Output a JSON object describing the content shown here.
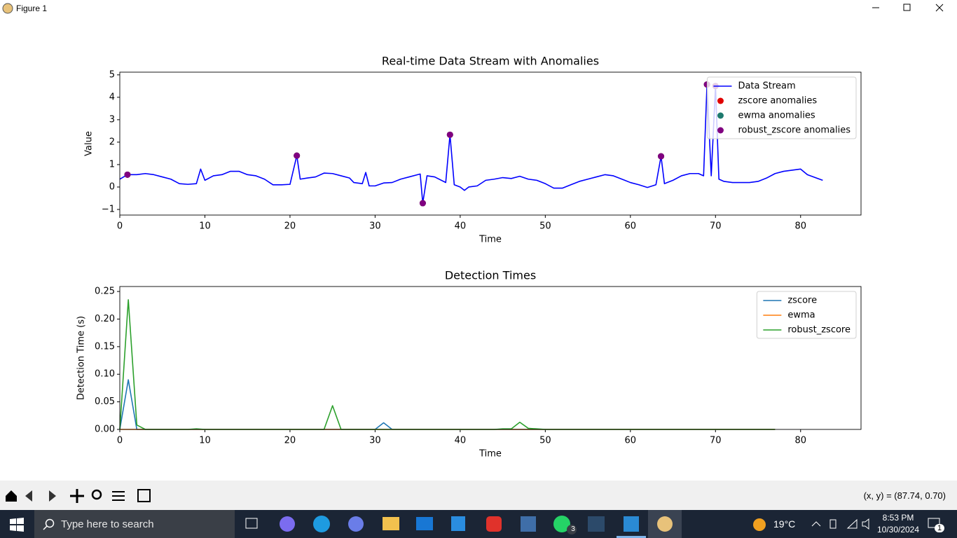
{
  "window": {
    "title": "Figure 1"
  },
  "chart_data": [
    {
      "type": "line",
      "title": "Real-time Data Stream with Anomalies",
      "xlabel": "Time",
      "ylabel": "Value",
      "xlim": [
        0,
        87.1
      ],
      "ylim": [
        -1.25,
        5.12
      ],
      "xticks": [
        0,
        10,
        20,
        30,
        40,
        50,
        60,
        70,
        80
      ],
      "yticks": [
        {
          "value": -1,
          "label": "−1"
        },
        0,
        1,
        2,
        3,
        4,
        5
      ],
      "legend": "upper right",
      "series": [
        {
          "name": "Data Stream",
          "color": "#0000ff",
          "x": [
            0,
            0.9,
            2,
            3,
            4,
            5,
            6,
            7,
            8,
            9,
            9.5,
            10,
            11,
            12,
            13,
            14,
            15,
            16,
            17,
            18,
            19,
            20,
            20.8,
            21.2,
            22,
            23,
            24,
            25,
            26,
            27,
            27.5,
            28.5,
            28.9,
            29.3,
            30,
            31,
            32,
            33,
            34,
            35.3,
            35.6,
            36.1,
            37,
            38.3,
            38.8,
            39.3,
            40,
            40.5,
            41,
            42,
            43,
            44,
            45,
            46,
            47,
            48,
            49,
            50,
            51,
            52,
            53,
            54,
            55,
            56,
            57,
            58,
            59,
            60,
            61,
            62,
            63,
            63.6,
            64,
            65,
            66,
            67,
            68,
            68.6,
            69,
            69.5,
            70,
            70.4,
            71,
            72,
            73,
            74,
            75,
            76,
            77,
            78,
            79,
            80,
            80.8,
            81.5,
            82.6
          ],
          "values": [
            0.35,
            0.55,
            0.55,
            0.6,
            0.55,
            0.45,
            0.35,
            0.15,
            0.12,
            0.15,
            0.8,
            0.3,
            0.5,
            0.55,
            0.7,
            0.7,
            0.55,
            0.5,
            0.35,
            0.1,
            0.1,
            0.12,
            1.4,
            0.35,
            0.4,
            0.45,
            0.62,
            0.6,
            0.5,
            0.4,
            0.2,
            0.15,
            0.65,
            0.05,
            0.05,
            0.18,
            0.2,
            0.35,
            0.45,
            0.58,
            -0.72,
            0.5,
            0.45,
            0.2,
            2.33,
            0.1,
            0.0,
            -0.15,
            0.0,
            0.05,
            0.3,
            0.35,
            0.42,
            0.38,
            0.48,
            0.35,
            0.3,
            0.15,
            -0.05,
            -0.05,
            0.1,
            0.25,
            0.35,
            0.45,
            0.55,
            0.5,
            0.35,
            0.2,
            0.1,
            -0.02,
            0.1,
            1.37,
            0.15,
            0.3,
            0.5,
            0.6,
            0.6,
            0.5,
            4.57,
            0.5,
            4.5,
            0.35,
            0.25,
            0.2,
            0.2,
            0.2,
            0.25,
            0.4,
            0.6,
            0.7,
            0.75,
            0.8,
            0.55,
            0.45,
            0.3
          ]
        },
        {
          "name": "zscore anomalies",
          "type": "scatter",
          "color": "#e00000",
          "x": [
            0.9,
            20.8,
            35.6,
            38.8,
            63.6,
            69,
            70
          ],
          "values": [
            0.55,
            1.4,
            -0.72,
            2.33,
            1.37,
            4.57,
            4.5
          ]
        },
        {
          "name": "ewma anomalies",
          "type": "scatter",
          "color": "#1e7a6e",
          "x": [
            0.9,
            20.8,
            35.6,
            38.8,
            63.6,
            69,
            70
          ],
          "values": [
            0.55,
            1.4,
            -0.72,
            2.33,
            1.37,
            4.57,
            4.5
          ]
        },
        {
          "name": "robust_zscore anomalies",
          "type": "scatter",
          "color": "#800080",
          "x": [
            0.9,
            20.8,
            35.6,
            38.8,
            63.6,
            69,
            70
          ],
          "values": [
            0.55,
            1.4,
            -0.72,
            2.33,
            1.37,
            4.57,
            4.5
          ]
        }
      ]
    },
    {
      "type": "line",
      "title": "Detection Times",
      "xlabel": "Time",
      "ylabel": "Detection Time (s)",
      "xlim": [
        0,
        87.1
      ],
      "ylim": [
        0,
        0.259
      ],
      "xticks": [
        0,
        10,
        20,
        30,
        40,
        50,
        60,
        70,
        80
      ],
      "yticks": [
        {
          "value": 0,
          "label": "0.00"
        },
        {
          "value": 0.05,
          "label": "0.05"
        },
        {
          "value": 0.1,
          "label": "0.10"
        },
        {
          "value": 0.15,
          "label": "0.15"
        },
        {
          "value": 0.2,
          "label": "0.20"
        },
        {
          "value": 0.25,
          "label": "0.25"
        }
      ],
      "legend": "upper right",
      "x": [
        0,
        1,
        2,
        3,
        4,
        5,
        6,
        7,
        8,
        9,
        10,
        11,
        12,
        13,
        14,
        15,
        16,
        17,
        18,
        19,
        20,
        21,
        22,
        23,
        24,
        25,
        26,
        27,
        28,
        29,
        30,
        31,
        32,
        33,
        34,
        35,
        36,
        37,
        38,
        39,
        40,
        41,
        42,
        43,
        44,
        45,
        46,
        47,
        48,
        49,
        50,
        51,
        52,
        53,
        54,
        55,
        56,
        57,
        58,
        59,
        60,
        61,
        62,
        63,
        64,
        65,
        66,
        67,
        68,
        69,
        70,
        71,
        72,
        73,
        74,
        75,
        76,
        77
      ],
      "series": [
        {
          "name": "zscore",
          "color": "#1f77b4",
          "values": [
            0,
            0.09,
            0,
            0,
            0,
            0,
            0,
            0,
            0,
            0,
            0,
            0,
            0,
            0,
            0,
            0,
            0,
            0,
            0,
            0,
            0,
            0,
            0,
            0,
            0,
            0,
            0,
            0,
            0,
            0,
            0,
            0.012,
            0,
            0,
            0,
            0,
            0,
            0,
            0,
            0,
            0,
            0,
            0,
            0,
            0,
            0,
            0,
            0,
            0,
            0,
            0,
            0,
            0,
            0,
            0,
            0,
            0,
            0,
            0,
            0,
            0,
            0,
            0,
            0,
            0,
            0,
            0,
            0,
            0,
            0,
            0,
            0,
            0,
            0,
            0,
            0,
            0,
            0
          ]
        },
        {
          "name": "ewma",
          "color": "#ff7f0e",
          "values": [
            0,
            0,
            0,
            0,
            0,
            0,
            0,
            0,
            0,
            0,
            0,
            0,
            0,
            0,
            0,
            0,
            0,
            0,
            0,
            0,
            0,
            0,
            0,
            0,
            0,
            0,
            0,
            0,
            0,
            0,
            0,
            0,
            0,
            0,
            0,
            0,
            0,
            0,
            0,
            0,
            0,
            0,
            0,
            0,
            0,
            0,
            0,
            0,
            0,
            0,
            0,
            0,
            0,
            0,
            0,
            0,
            0,
            0,
            0,
            0,
            0,
            0,
            0,
            0,
            0,
            0,
            0,
            0,
            0,
            0,
            0,
            0,
            0,
            0,
            0,
            0,
            0,
            0
          ]
        },
        {
          "name": "robust_zscore",
          "color": "#2ca02c",
          "values": [
            0,
            0.235,
            0.008,
            0,
            0,
            0,
            0,
            0,
            0,
            0.001,
            0,
            0,
            0,
            0,
            0,
            0,
            0,
            0,
            0,
            0,
            0,
            0,
            0,
            0,
            0,
            0.043,
            0,
            0,
            0,
            0,
            0,
            0,
            0,
            0,
            0,
            0,
            0,
            0,
            0,
            0,
            0,
            0,
            0,
            0,
            0,
            0.001,
            0.001,
            0.013,
            0.002,
            0.001,
            0,
            0,
            0,
            0,
            0,
            0,
            0,
            0,
            0,
            0,
            0,
            0,
            0,
            0,
            0,
            0,
            0,
            0,
            0,
            0,
            0,
            0,
            0,
            0,
            0,
            0,
            0,
            0
          ]
        }
      ]
    }
  ],
  "toolbar": {
    "status": "(x, y) = (87.74, 0.70)"
  },
  "taskbar": {
    "search_placeholder": "Type here to search",
    "whatsapp_badge": "3",
    "weather": "19°C",
    "time": "8:53 PM",
    "date": "10/30/2024",
    "notification_count": "1"
  }
}
